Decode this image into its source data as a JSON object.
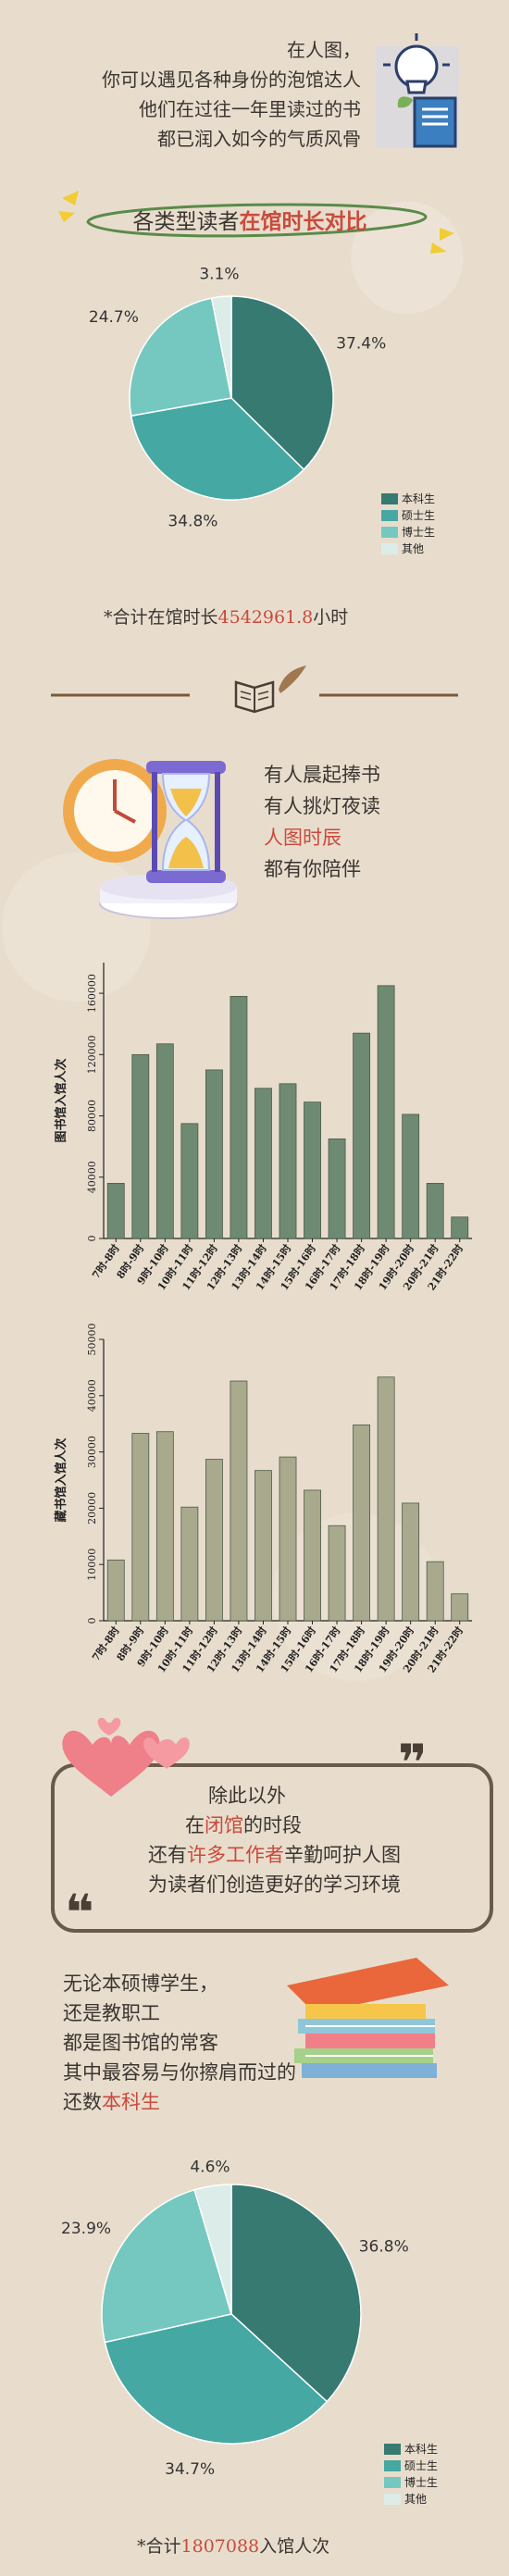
{
  "intro": {
    "lines": [
      "在人图，",
      "你可以遇见各种身份的泡馆达人",
      "他们在过往一年里读过的书",
      "都已润入如今的气质风骨"
    ]
  },
  "section1": {
    "title_prefix": "各类型读者",
    "title_highlight": "在馆时长对比",
    "total_prefix": "*合计在馆时长",
    "total_value": "4542961.8",
    "total_suffix": "小时"
  },
  "section2": {
    "lines": [
      "有人晨起捧书",
      "有人挑灯夜读",
      "人图时辰",
      "都有你陪伴"
    ]
  },
  "section3": {
    "line1": "除此以外",
    "line2_prefix": "在",
    "line2_highlight": "闭馆",
    "line2_suffix": "的时段",
    "line3_prefix": "还有",
    "line3_highlight": "许多工作者",
    "line3_suffix": "辛勤呵护人图",
    "line4": "为读者们创造更好的学习环境"
  },
  "section4": {
    "lines": [
      "无论本硕博学生，",
      "还是教职工",
      "都是图书馆的常客",
      "其中最容易与你擦肩而过的"
    ],
    "line5_prefix": "还数",
    "line5_highlight": "本科生",
    "total_prefix": "*合计",
    "total_value": "1807088",
    "total_suffix": "入馆人次"
  },
  "colors": {
    "undergrad": "#367a72",
    "master": "#45a8a2",
    "phd": "#74c8c0",
    "other": "#dcece8",
    "bar1": "#6f8a72",
    "bar2": "#a9a98e",
    "accent_red": "#c84b3c",
    "highlight_yellow": "#f2cc35",
    "ribbon_green": "#5a8a4a"
  },
  "chart_data": [
    {
      "type": "pie",
      "labels": [
        "本科生",
        "硕士生",
        "博士生",
        "其他"
      ],
      "values": [
        37.4,
        34.8,
        24.7,
        3.1
      ],
      "value_labels": [
        "37.4%",
        "34.8%",
        "24.7%",
        "3.1%"
      ],
      "legend_position": "bottom-right"
    },
    {
      "type": "bar",
      "ylabel": "图书馆入馆人次",
      "categories": [
        "7时-8时",
        "8时-9时",
        "9时-10时",
        "10时-11时",
        "11时-12时",
        "12时-13时",
        "13时-14时",
        "14时-15时",
        "15时-16时",
        "16时-17时",
        "17时-18时",
        "18时-19时",
        "19时-20时",
        "20时-21时",
        "21时-22时"
      ],
      "values": [
        36000,
        120000,
        127000,
        75000,
        110000,
        158000,
        98000,
        101000,
        89000,
        65000,
        134000,
        165000,
        81000,
        36000,
        14000
      ],
      "ylim": [
        0,
        180000
      ],
      "yticks": [
        0,
        40000,
        80000,
        120000,
        160000
      ],
      "ytick_labels": [
        "0",
        "40000",
        "80000",
        "120000",
        "160000"
      ],
      "grid": false
    },
    {
      "type": "bar",
      "ylabel": "藏书馆入馆人次",
      "categories": [
        "7时-8时",
        "8时-9时",
        "9时-10时",
        "10时-11时",
        "11时-12时",
        "12时-13时",
        "13时-14时",
        "14时-15时",
        "15时-16时",
        "16时-17时",
        "17时-18时",
        "18时-19时",
        "19时-20时",
        "20时-21时",
        "21时-22时"
      ],
      "values": [
        10800,
        33300,
        33600,
        20200,
        28700,
        42600,
        26700,
        29100,
        23200,
        16900,
        34800,
        43300,
        20900,
        10500,
        4800
      ],
      "ylim": [
        0,
        50000
      ],
      "yticks": [
        0,
        10000,
        20000,
        30000,
        40000,
        50000
      ],
      "ytick_labels": [
        "0",
        "10000",
        "20000",
        "30000",
        "40000",
        "50000"
      ],
      "grid": false
    },
    {
      "type": "pie",
      "labels": [
        "本科生",
        "硕士生",
        "博士生",
        "其他"
      ],
      "values": [
        36.8,
        34.7,
        23.9,
        4.6
      ],
      "value_labels": [
        "36.8%",
        "34.7%",
        "23.9%",
        "4.6%"
      ],
      "legend_position": "bottom-right"
    }
  ]
}
